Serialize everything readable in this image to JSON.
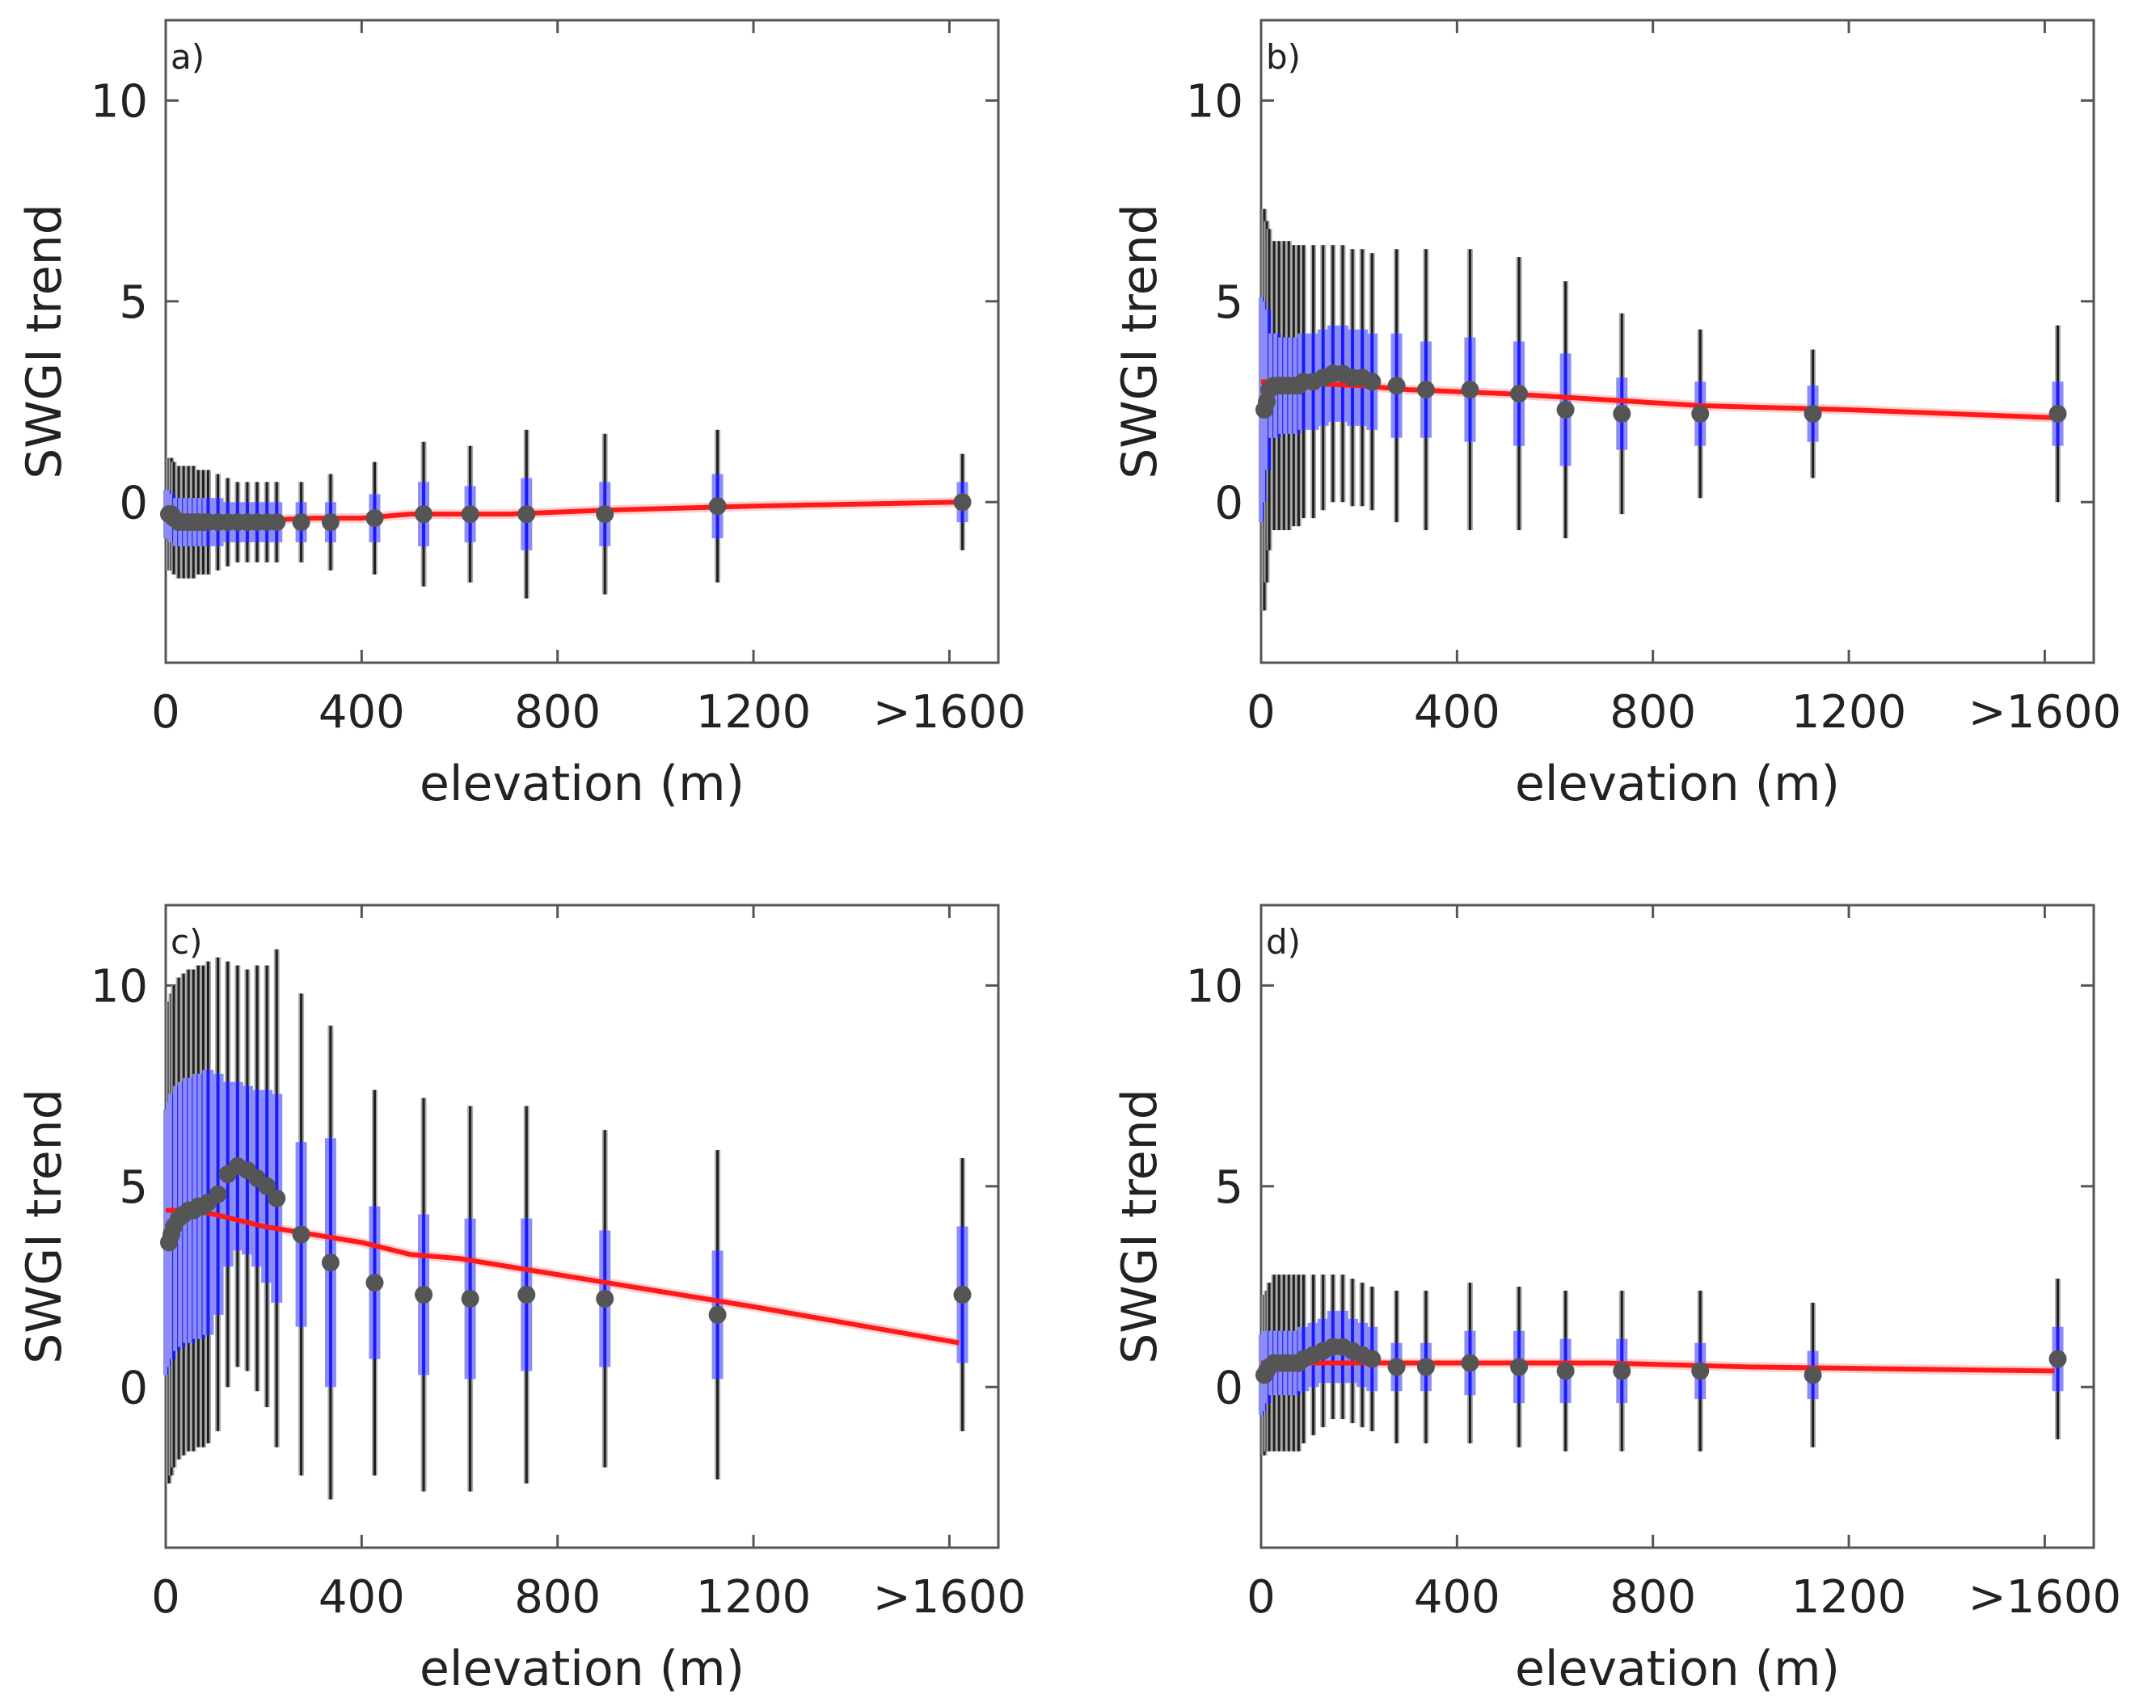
{
  "chart_data": [
    {
      "panel": "a)",
      "type": "scatter",
      "xlabel": "elevation (m)",
      "ylabel": "SWGI trend",
      "xlim": [
        0,
        1700
      ],
      "ylim": [
        -4,
        12
      ],
      "xticks": [
        0,
        400,
        800,
        1200,
        1600
      ],
      "xtick_labels": [
        "0",
        "400",
        "800",
        "1200",
        ">1600"
      ],
      "yticks": [
        0,
        5,
        10
      ],
      "ytick_labels": [
        "0",
        "5",
        "10"
      ],
      "x": [
        0,
        5,
        10,
        20,
        30,
        40,
        50,
        60,
        70,
        80,
        100,
        120,
        140,
        160,
        180,
        200,
        220,
        270,
        330,
        420,
        520,
        615,
        730,
        890,
        1120,
        1620
      ],
      "mean": [
        -0.3,
        -0.3,
        -0.4,
        -0.5,
        -0.5,
        -0.5,
        -0.5,
        -0.5,
        -0.5,
        -0.5,
        -0.5,
        -0.5,
        -0.5,
        -0.5,
        -0.5,
        -0.5,
        -0.5,
        -0.5,
        -0.5,
        -0.4,
        -0.3,
        -0.3,
        -0.3,
        -0.3,
        -0.1,
        0.0
      ],
      "inner": [
        0.6,
        0.6,
        0.6,
        0.6,
        0.6,
        0.6,
        0.6,
        0.6,
        0.6,
        0.6,
        0.6,
        0.5,
        0.5,
        0.5,
        0.5,
        0.5,
        0.5,
        0.5,
        0.5,
        0.6,
        0.8,
        0.7,
        0.9,
        0.8,
        0.8,
        0.5
      ],
      "outer": [
        1.4,
        1.4,
        1.4,
        1.4,
        1.4,
        1.4,
        1.4,
        1.3,
        1.3,
        1.3,
        1.2,
        1.1,
        1.0,
        1.0,
        1.0,
        1.0,
        1.0,
        1.0,
        1.2,
        1.4,
        1.8,
        1.7,
        2.1,
        2.0,
        1.9,
        1.2
      ],
      "trend_x": [
        0,
        50,
        100,
        200,
        300,
        400,
        500,
        700,
        900,
        1200,
        1620
      ],
      "trend_y": [
        -0.4,
        -0.5,
        -0.5,
        -0.45,
        -0.4,
        -0.4,
        -0.3,
        -0.3,
        -0.2,
        -0.1,
        0.0
      ]
    },
    {
      "panel": "b)",
      "type": "scatter",
      "xlabel": "elevation (m)",
      "ylabel": "SWGI trend",
      "xlim": [
        0,
        1700
      ],
      "ylim": [
        -4,
        12
      ],
      "xticks": [
        0,
        400,
        800,
        1200,
        1600
      ],
      "xtick_labels": [
        "0",
        "400",
        "800",
        "1200",
        ">1600"
      ],
      "yticks": [
        0,
        5,
        10
      ],
      "ytick_labels": [
        "0",
        "5",
        "10"
      ],
      "x": [
        0,
        5,
        10,
        20,
        30,
        40,
        50,
        60,
        70,
        80,
        100,
        120,
        140,
        160,
        180,
        200,
        220,
        270,
        330,
        420,
        520,
        615,
        730,
        890,
        1120,
        1620
      ],
      "mean": [
        2.3,
        2.5,
        2.8,
        2.9,
        2.9,
        2.9,
        2.9,
        2.9,
        2.9,
        3.0,
        3.0,
        3.1,
        3.2,
        3.2,
        3.1,
        3.1,
        3.0,
        2.9,
        2.8,
        2.8,
        2.7,
        2.3,
        2.2,
        2.2,
        2.2,
        2.2
      ],
      "inner": [
        2.8,
        2.5,
        2.0,
        1.3,
        1.3,
        1.2,
        1.2,
        1.2,
        1.2,
        1.2,
        1.2,
        1.2,
        1.2,
        1.2,
        1.2,
        1.2,
        1.2,
        1.3,
        1.2,
        1.3,
        1.3,
        1.4,
        0.9,
        0.8,
        0.7,
        0.8
      ],
      "outer": [
        5.0,
        4.5,
        4.0,
        3.6,
        3.6,
        3.6,
        3.6,
        3.5,
        3.5,
        3.4,
        3.4,
        3.3,
        3.2,
        3.2,
        3.2,
        3.2,
        3.2,
        3.4,
        3.5,
        3.5,
        3.4,
        3.2,
        2.5,
        2.1,
        1.6,
        2.2
      ],
      "trend_x": [
        0,
        100,
        200,
        300,
        500,
        700,
        900,
        1200,
        1620
      ],
      "trend_y": [
        3.0,
        2.95,
        2.9,
        2.8,
        2.7,
        2.55,
        2.4,
        2.3,
        2.1
      ]
    },
    {
      "panel": "c)",
      "type": "scatter",
      "xlabel": "elevation (m)",
      "ylabel": "SWGI trend",
      "xlim": [
        0,
        1700
      ],
      "ylim": [
        -4,
        12
      ],
      "xticks": [
        0,
        400,
        800,
        1200,
        1600
      ],
      "xtick_labels": [
        "0",
        "400",
        "800",
        "1200",
        ">1600"
      ],
      "yticks": [
        0,
        5,
        10
      ],
      "ytick_labels": [
        "0",
        "5",
        "10"
      ],
      "x": [
        0,
        5,
        10,
        20,
        30,
        40,
        50,
        60,
        70,
        80,
        100,
        120,
        140,
        160,
        180,
        200,
        220,
        270,
        330,
        420,
        520,
        615,
        730,
        890,
        1120,
        1620
      ],
      "mean": [
        3.6,
        3.8,
        4.0,
        4.2,
        4.3,
        4.4,
        4.4,
        4.5,
        4.5,
        4.6,
        4.8,
        5.3,
        5.5,
        5.4,
        5.2,
        5.0,
        4.7,
        3.8,
        3.1,
        2.6,
        2.3,
        2.2,
        2.3,
        2.2,
        1.8,
        2.3
      ],
      "inner": [
        3.3,
        3.3,
        3.3,
        3.3,
        3.3,
        3.3,
        3.3,
        3.3,
        3.3,
        3.3,
        3.0,
        2.3,
        2.1,
        2.1,
        2.2,
        2.4,
        2.6,
        2.3,
        3.1,
        1.9,
        2.0,
        2.0,
        1.9,
        1.7,
        1.6,
        1.7
      ],
      "outer": [
        6.0,
        6.0,
        6.0,
        6.0,
        6.0,
        6.0,
        6.0,
        6.0,
        6.0,
        6.0,
        5.9,
        5.3,
        5.0,
        5.0,
        5.3,
        5.5,
        6.2,
        6.0,
        5.9,
        4.8,
        4.9,
        4.8,
        4.7,
        4.2,
        4.1,
        3.4
      ],
      "trend_x": [
        0,
        50,
        100,
        200,
        300,
        400,
        500,
        600,
        800,
        1000,
        1200,
        1620
      ],
      "trend_y": [
        4.4,
        4.4,
        4.3,
        4.0,
        3.8,
        3.6,
        3.3,
        3.2,
        2.8,
        2.4,
        2.0,
        1.1
      ]
    },
    {
      "panel": "d)",
      "type": "scatter",
      "xlabel": "elevation (m)",
      "ylabel": "SWGI trend",
      "xlim": [
        0,
        1700
      ],
      "ylim": [
        -4,
        12
      ],
      "xticks": [
        0,
        400,
        800,
        1200,
        1600
      ],
      "xtick_labels": [
        "0",
        "400",
        "800",
        "1200",
        ">1600"
      ],
      "yticks": [
        0,
        5,
        10
      ],
      "ytick_labels": [
        "0",
        "5",
        "10"
      ],
      "x": [
        0,
        5,
        10,
        20,
        30,
        40,
        50,
        60,
        70,
        80,
        100,
        120,
        140,
        160,
        180,
        200,
        220,
        270,
        330,
        420,
        520,
        615,
        730,
        890,
        1120,
        1620
      ],
      "mean": [
        0.3,
        0.4,
        0.5,
        0.6,
        0.6,
        0.6,
        0.6,
        0.6,
        0.6,
        0.7,
        0.8,
        0.9,
        1.0,
        1.0,
        0.9,
        0.8,
        0.7,
        0.5,
        0.5,
        0.6,
        0.5,
        0.4,
        0.4,
        0.4,
        0.3,
        0.7
      ],
      "inner": [
        1.0,
        1.0,
        0.9,
        0.8,
        0.8,
        0.8,
        0.8,
        0.8,
        0.8,
        0.8,
        0.8,
        0.8,
        0.9,
        0.9,
        0.8,
        0.8,
        0.8,
        0.6,
        0.6,
        0.8,
        0.9,
        0.8,
        0.8,
        0.7,
        0.6,
        0.8
      ],
      "outer": [
        2.0,
        2.0,
        2.1,
        2.2,
        2.2,
        2.2,
        2.2,
        2.2,
        2.2,
        2.1,
        2.0,
        1.9,
        1.8,
        1.8,
        1.8,
        1.8,
        1.8,
        1.9,
        1.9,
        2.0,
        2.0,
        2.0,
        2.0,
        2.0,
        1.8,
        2.0
      ],
      "trend_x": [
        0,
        100,
        200,
        400,
        700,
        1000,
        1300,
        1620
      ],
      "trend_y": [
        0.6,
        0.6,
        0.6,
        0.6,
        0.6,
        0.5,
        0.45,
        0.4
      ]
    }
  ]
}
